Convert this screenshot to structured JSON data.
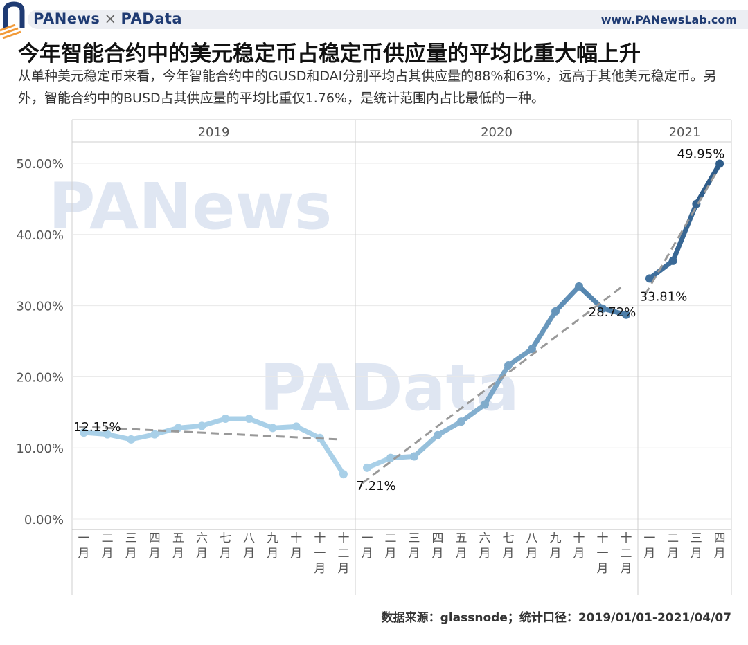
{
  "header": {
    "brand_left": "PANews",
    "brand_sep": "×",
    "brand_right": "PAData",
    "site": "www.PANewsLab.com"
  },
  "title": "今年智能合约中的美元稳定币占稳定币供应量的平均比重大幅上升",
  "subtitle": "从单种美元稳定币来看，今年智能合约中的GUSD和DAI分别平均占其供应量的88%和63%，远高于其他美元稳定币。另外，智能合约中的BUSD占其供应量的平均比重仅1.76%，是统计范围内占比最低的一种。",
  "source": "数据来源：glassnode；统计口径：2019/01/01-2021/04/07",
  "watermarks": [
    "PANews",
    "PAData"
  ],
  "colors": {
    "line_2019": "#a9d0e8",
    "line_2020_start": "#a9d0e8",
    "line_2020_end": "#4c7ea9",
    "line_2021_start": "#3f6f9c",
    "line_2021_end": "#2f5d8a",
    "trend": "#999999",
    "grid": "#e8e8e8"
  },
  "chart_data": {
    "type": "line",
    "y_axis": {
      "ticks": [
        "0.00%",
        "10.00%",
        "20.00%",
        "30.00%",
        "40.00%",
        "50.00%"
      ],
      "tick_values": [
        0,
        10,
        20,
        30,
        40,
        50
      ],
      "ylim": [
        0,
        52
      ]
    },
    "trend_lines": "dashed linear trend per year",
    "panels": [
      {
        "year": "2019",
        "months": [
          "一月",
          "二月",
          "三月",
          "四月",
          "五月",
          "六月",
          "七月",
          "八月",
          "九月",
          "十月",
          "十一月",
          "十二月"
        ],
        "values": [
          12.15,
          11.9,
          11.2,
          11.9,
          12.8,
          13.1,
          14.1,
          14.1,
          12.8,
          13.0,
          11.4,
          6.3
        ],
        "labels": [
          {
            "index": 0,
            "text": "12.15%"
          }
        ]
      },
      {
        "year": "2020",
        "months": [
          "一月",
          "二月",
          "三月",
          "四月",
          "五月",
          "六月",
          "七月",
          "八月",
          "九月",
          "十月",
          "十一月",
          "十二月"
        ],
        "values": [
          7.21,
          8.6,
          8.8,
          11.8,
          13.7,
          16.1,
          21.6,
          23.9,
          29.2,
          32.7,
          29.6,
          28.72
        ],
        "labels": [
          {
            "index": 0,
            "text": "7.21%"
          },
          {
            "index": 11,
            "text": "28.72%"
          }
        ]
      },
      {
        "year": "2021",
        "months": [
          "一月",
          "二月",
          "三月",
          "四月"
        ],
        "values": [
          33.81,
          36.3,
          44.3,
          49.95
        ],
        "labels": [
          {
            "index": 0,
            "text": "33.81%"
          },
          {
            "index": 3,
            "text": "49.95%"
          }
        ]
      }
    ]
  }
}
